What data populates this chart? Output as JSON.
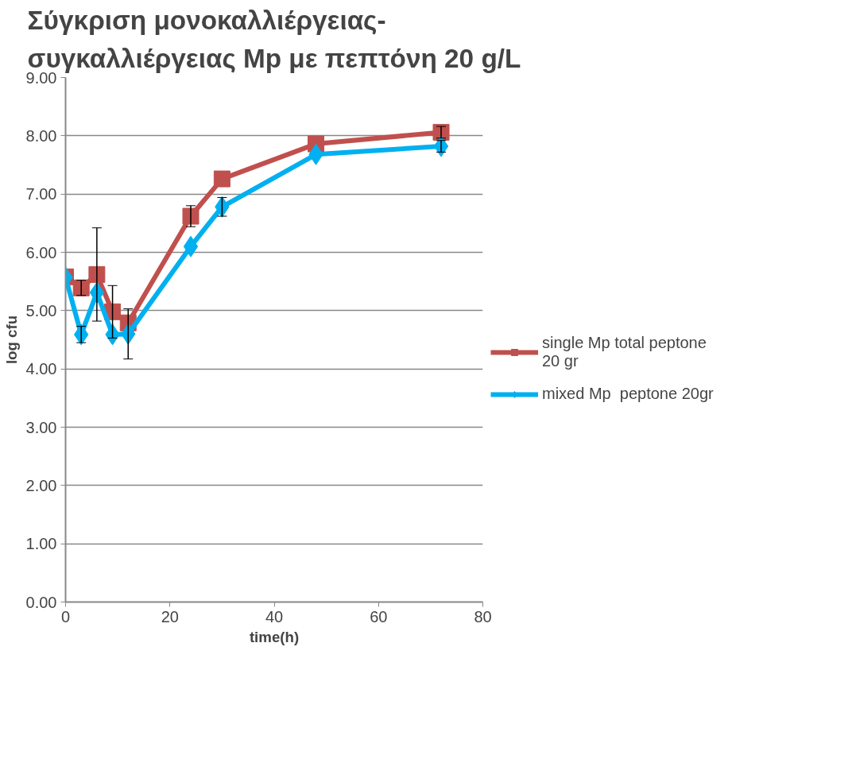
{
  "chart_data": {
    "type": "line",
    "title": "Σύγκριση μονοκαλλιέργειας-\nσυγκαλλιέργειας Mp με πεπτόνη 20 g/L",
    "xlabel": "time(h)",
    "ylabel": "log cfu",
    "x": [
      0,
      3,
      6,
      9,
      12,
      24,
      30,
      48,
      72
    ],
    "series": [
      {
        "name": "single Mp total peptone\n20 gr",
        "color": "#c0504d",
        "marker": "square",
        "values": [
          5.58,
          5.39,
          5.62,
          4.98,
          4.79,
          6.62,
          7.26,
          7.86,
          8.06
        ],
        "errors": [
          null,
          0.13,
          0.8,
          0.45,
          null,
          0.18,
          null,
          null,
          0.1
        ]
      },
      {
        "name": "mixed Mp  peptone 20gr",
        "color": "#00b0f0",
        "marker": "diamond",
        "values": [
          5.57,
          4.59,
          5.31,
          4.59,
          4.6,
          6.1,
          6.78,
          7.68,
          7.82
        ],
        "errors": [
          null,
          0.14,
          null,
          null,
          0.43,
          null,
          0.16,
          null,
          0.1
        ]
      }
    ],
    "xlim": [
      0,
      80
    ],
    "xticks": [
      0,
      20,
      40,
      60,
      80
    ],
    "ylim": [
      0,
      9
    ],
    "yticks": [
      {
        "value": 0,
        "label": "0.00"
      },
      {
        "value": 1,
        "label": "1.00"
      },
      {
        "value": 2,
        "label": "2.00"
      },
      {
        "value": 3,
        "label": "3.00"
      },
      {
        "value": 4,
        "label": "4.00"
      },
      {
        "value": 5,
        "label": "5.00"
      },
      {
        "value": 6,
        "label": "6.00"
      },
      {
        "value": 7,
        "label": "7.00"
      },
      {
        "value": 8,
        "label": "8.00"
      },
      {
        "value": 9,
        "label": "9.00"
      }
    ],
    "grid": "y",
    "legend": "right"
  }
}
